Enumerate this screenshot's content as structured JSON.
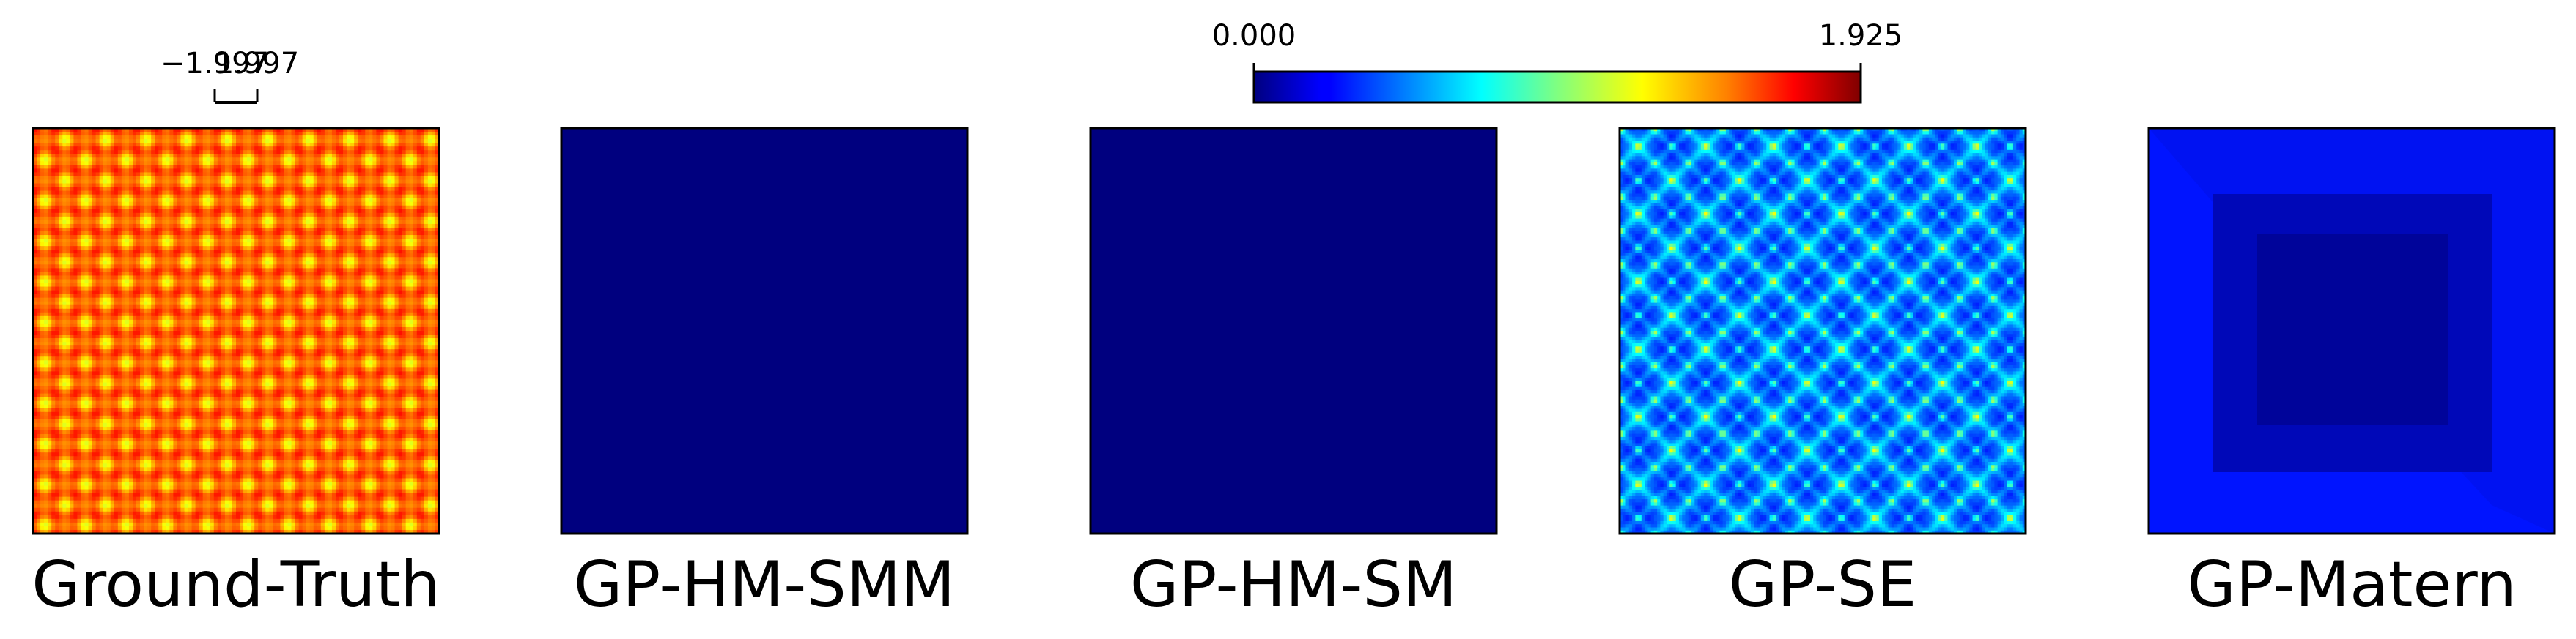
{
  "chart_data": [
    {
      "type": "heatmap",
      "title": "Ground-Truth",
      "pattern": "periodic-grid",
      "colormap": "jet",
      "colorbar": {
        "ticks": [
          "−1.997",
          "1.997"
        ]
      }
    },
    {
      "type": "heatmap",
      "title": "GP-HM-SMM",
      "pattern": "constant-zero",
      "colormap": "jet"
    },
    {
      "type": "heatmap",
      "title": "GP-HM-SM",
      "pattern": "constant-zero",
      "colormap": "jet"
    },
    {
      "type": "heatmap",
      "title": "GP-SE",
      "pattern": "periodic-error",
      "colormap": "jet"
    },
    {
      "type": "heatmap",
      "title": "GP-Matern",
      "pattern": "frame-error",
      "colormap": "jet"
    }
  ],
  "error_colorbar": {
    "colormap": "jet",
    "min_label": "0.000",
    "max_label": "1.925",
    "range": [
      0.0,
      1.925
    ]
  }
}
